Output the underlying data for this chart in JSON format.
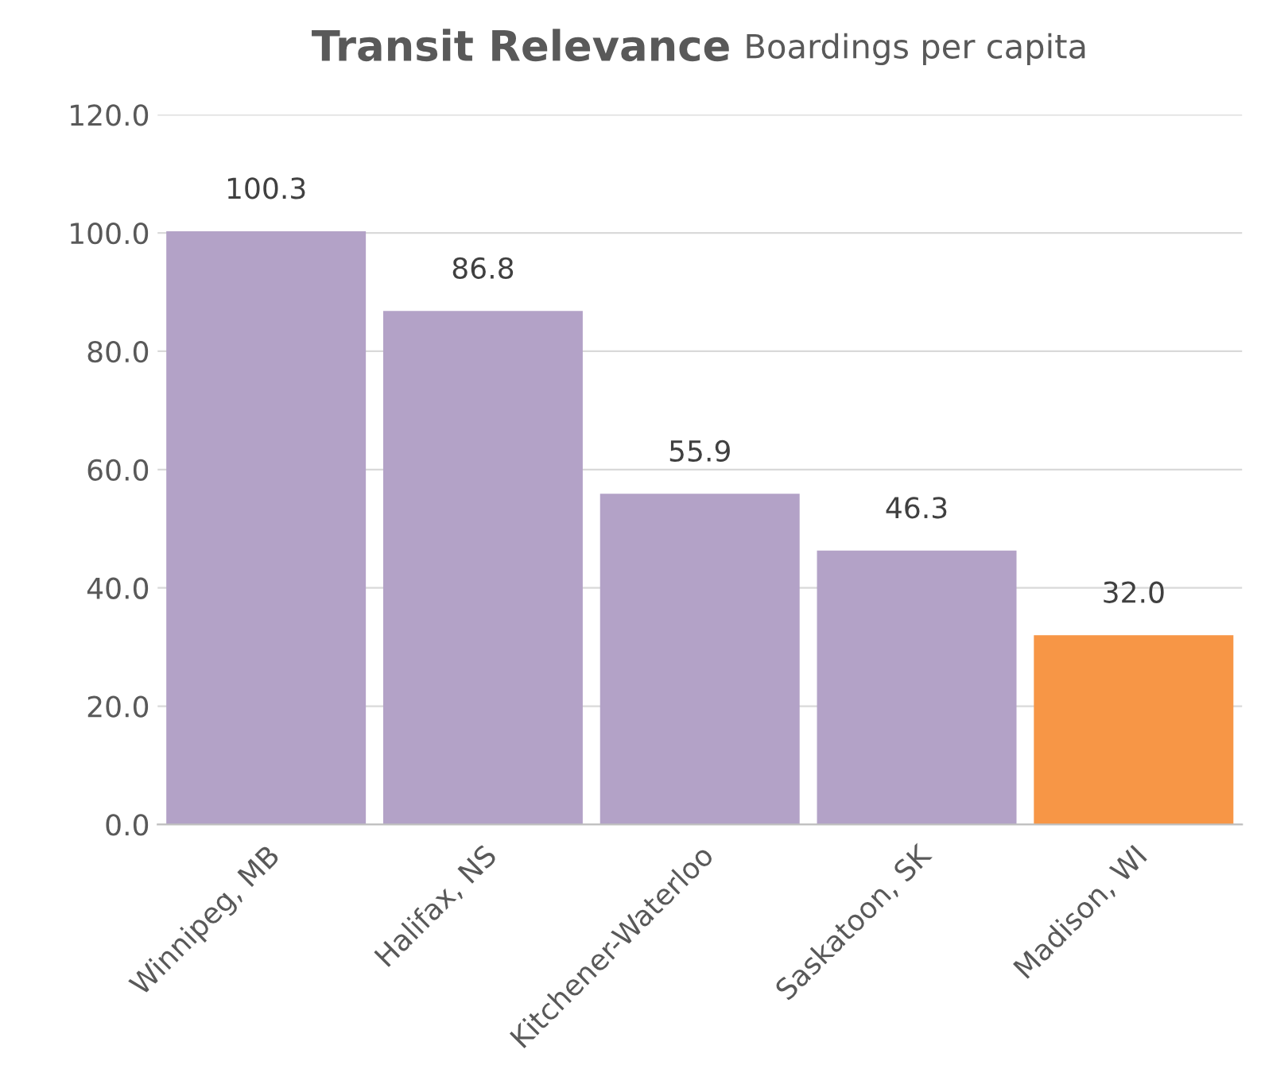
{
  "chart_data": {
    "type": "bar",
    "title": "Transit Relevance",
    "subtitle": "Boardings per capita",
    "categories": [
      "Winnipeg, MB",
      "Halifax, NS",
      "Kitchener-Waterloo",
      "Saskatoon, SK",
      "Madison, WI"
    ],
    "values": [
      100.3,
      86.8,
      55.9,
      46.3,
      32.0
    ],
    "colors": [
      "#b3a2c7",
      "#b3a2c7",
      "#b3a2c7",
      "#b3a2c7",
      "#f79646"
    ],
    "ylim": [
      0,
      120
    ],
    "yticks": [
      {
        "value": 0,
        "label": "0.0"
      },
      {
        "value": 20,
        "label": "20.0"
      },
      {
        "value": 40,
        "label": "40.0"
      },
      {
        "value": 60,
        "label": "60.0"
      },
      {
        "value": 80,
        "label": "80.0"
      },
      {
        "value": 100,
        "label": "100.0"
      },
      {
        "value": 120,
        "label": "120.0"
      }
    ],
    "value_labels": [
      "100.3",
      "86.8",
      "55.9",
      "46.3",
      "32.0"
    ],
    "grid": "y",
    "legend": false
  }
}
